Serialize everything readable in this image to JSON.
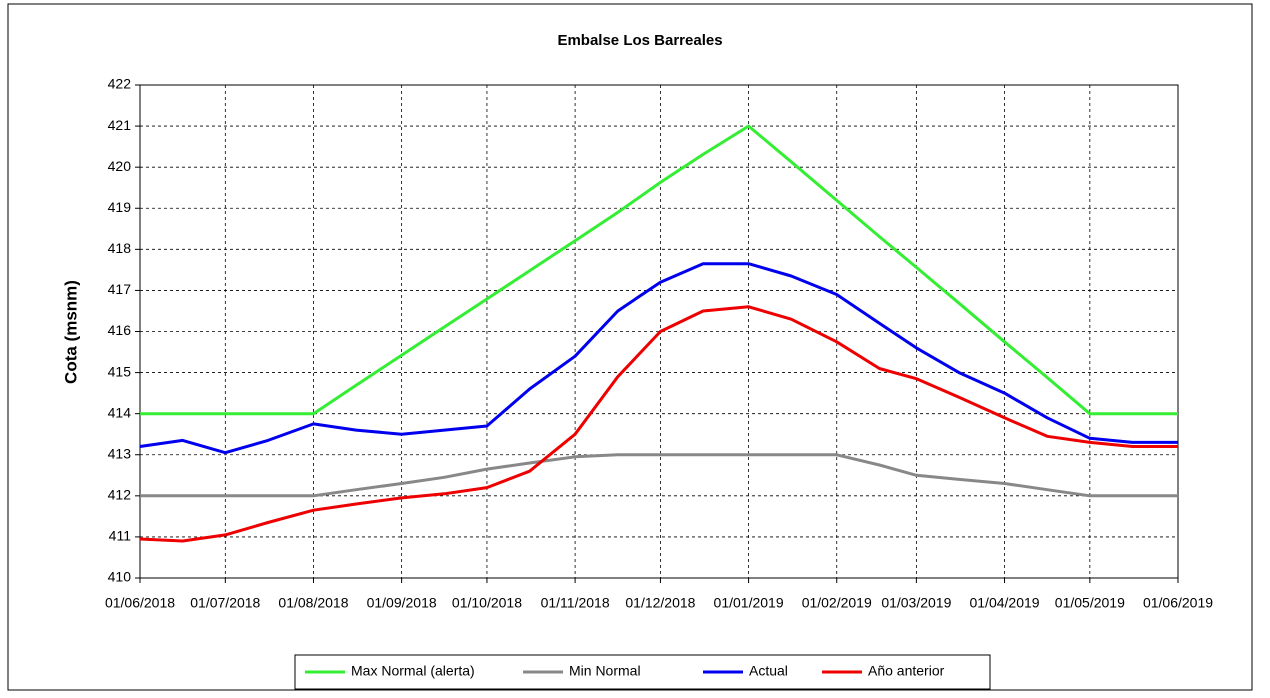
{
  "chart_data": {
    "type": "line",
    "title": "Embalse Los Barreales",
    "ylabel": "Cota (msnm)",
    "x": [
      "2018-06-01",
      "2018-06-16",
      "2018-07-01",
      "2018-07-16",
      "2018-08-01",
      "2018-08-16",
      "2018-09-01",
      "2018-09-16",
      "2018-10-01",
      "2018-10-16",
      "2018-11-01",
      "2018-11-16",
      "2018-12-01",
      "2018-12-16",
      "2019-01-01",
      "2019-01-16",
      "2019-02-01",
      "2019-02-16",
      "2019-03-01",
      "2019-03-16",
      "2019-04-01",
      "2019-04-16",
      "2019-05-01",
      "2019-05-16",
      "2019-06-01"
    ],
    "series": [
      {
        "name": "Max Normal (alerta)",
        "color": "#33ee33",
        "values": [
          414,
          414,
          414,
          414,
          414,
          414.69,
          415.42,
          416.11,
          416.79,
          417.48,
          418.21,
          418.9,
          419.63,
          420.31,
          421,
          420.13,
          419.19,
          418.31,
          417.56,
          416.69,
          415.75,
          414.88,
          414,
          414,
          414
        ]
      },
      {
        "name": "Min Normal",
        "color": "#888888",
        "values": [
          412,
          412,
          412,
          412,
          412,
          412.15,
          412.3,
          412.45,
          412.65,
          412.8,
          412.95,
          413,
          413,
          413,
          413,
          413,
          413,
          412.75,
          412.5,
          412.4,
          412.3,
          412.15,
          412,
          412,
          412
        ]
      },
      {
        "name": "Actual",
        "color": "#0000ee",
        "values": [
          413.2,
          413.35,
          413.05,
          413.35,
          413.75,
          413.6,
          413.5,
          413.6,
          413.7,
          414.6,
          415.4,
          416.5,
          417.2,
          417.65,
          417.65,
          417.35,
          416.9,
          416.2,
          415.6,
          415.0,
          414.5,
          413.9,
          413.4,
          413.3,
          413.3
        ]
      },
      {
        "name": "Año anterior",
        "color": "#ee0000",
        "values": [
          410.95,
          410.9,
          411.05,
          411.35,
          411.65,
          411.8,
          411.95,
          412.05,
          412.2,
          412.6,
          413.5,
          414.9,
          416.0,
          416.5,
          416.6,
          416.3,
          415.75,
          415.1,
          414.85,
          414.4,
          413.9,
          413.45,
          413.3,
          413.2,
          413.2
        ]
      }
    ],
    "xlim": [
      "2018-06-01",
      "2019-06-01"
    ],
    "xticks": [
      {
        "value": "2018-06-01",
        "label": "01/06/2018"
      },
      {
        "value": "2018-07-01",
        "label": "01/07/2018"
      },
      {
        "value": "2018-08-01",
        "label": "01/08/2018"
      },
      {
        "value": "2018-09-01",
        "label": "01/09/2018"
      },
      {
        "value": "2018-10-01",
        "label": "01/10/2018"
      },
      {
        "value": "2018-11-01",
        "label": "01/11/2018"
      },
      {
        "value": "2018-12-01",
        "label": "01/12/2018"
      },
      {
        "value": "2019-01-01",
        "label": "01/01/2019"
      },
      {
        "value": "2019-02-01",
        "label": "01/02/2019"
      },
      {
        "value": "2019-03-01",
        "label": "01/03/2019"
      },
      {
        "value": "2019-04-01",
        "label": "01/04/2019"
      },
      {
        "value": "2019-05-01",
        "label": "01/05/2019"
      },
      {
        "value": "2019-06-01",
        "label": "01/06/2019"
      }
    ],
    "ylim": [
      410,
      422
    ],
    "yticks": [
      410,
      411,
      412,
      413,
      414,
      415,
      416,
      417,
      418,
      419,
      420,
      421,
      422
    ],
    "grid": true,
    "legend": "bottom"
  }
}
